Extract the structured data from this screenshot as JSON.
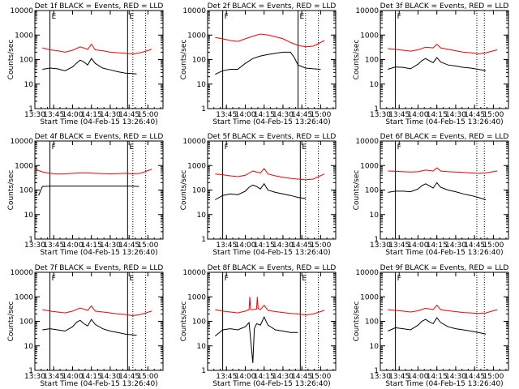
{
  "figure": {
    "xlabel": "Start Time (04-Feb-15 13:26:40)",
    "ylabel": "Counts/sec",
    "colors": {
      "events": "#000000",
      "lld": "#ff0000",
      "axes": "#000000"
    }
  },
  "chart_data": [
    {
      "type": "line",
      "title": "Det 1f BLACK = Events, RED = LLD",
      "xticks": [
        "13:30",
        "13:45",
        "14:00",
        "14:15",
        "14:30",
        "14:45",
        "15:00"
      ],
      "yticks": [
        "1",
        "10",
        "100",
        "1000",
        "10000"
      ],
      "ylim": [
        1,
        10000
      ],
      "log_y": true,
      "markers": [
        {
          "label": "E",
          "time": 13.7,
          "style": "solid"
        },
        {
          "label": "E",
          "time": 14.73,
          "style": "solid"
        }
      ],
      "dotted_times": [
        14.8,
        14.97
      ],
      "series": [
        {
          "name": "LLD",
          "color": "#ff0000",
          "x": [
            13.6,
            13.7,
            13.8,
            13.9,
            14.0,
            14.1,
            14.2,
            14.25,
            14.3,
            14.4,
            14.5,
            14.6,
            14.7,
            14.8,
            14.9,
            15.05
          ],
          "y": [
            300,
            250,
            230,
            200,
            240,
            330,
            260,
            420,
            250,
            230,
            200,
            190,
            180,
            170,
            190,
            260
          ]
        },
        {
          "name": "Events",
          "color": "#000000",
          "x": [
            13.6,
            13.7,
            13.8,
            13.9,
            14.0,
            14.05,
            14.1,
            14.15,
            14.2,
            14.25,
            14.3,
            14.4,
            14.5,
            14.6,
            14.7,
            14.8,
            14.85
          ],
          "y": [
            40,
            45,
            42,
            35,
            50,
            70,
            95,
            80,
            60,
            110,
            70,
            45,
            38,
            32,
            28,
            27,
            26
          ]
        }
      ]
    },
    {
      "type": "line",
      "title": "Det 2f BLACK = Events, RED = LLD",
      "xticks": [
        "13:45",
        "14:00",
        "14:15",
        "14:30",
        "14:45",
        "15:00"
      ],
      "yticks": [
        "1",
        "10",
        "100",
        "1000",
        "10000"
      ],
      "ylim": [
        1,
        10000
      ],
      "log_y": true,
      "markers": [
        {
          "label": "F",
          "time": 13.7,
          "style": "solid"
        },
        {
          "label": "E",
          "time": 14.7,
          "style": "solid"
        }
      ],
      "dotted_times": [
        14.8,
        14.97
      ],
      "series": [
        {
          "name": "LLD",
          "color": "#ff0000",
          "x": [
            13.6,
            13.7,
            13.8,
            13.9,
            14.0,
            14.1,
            14.2,
            14.3,
            14.4,
            14.5,
            14.6,
            14.7,
            14.8,
            14.9,
            15.05
          ],
          "y": [
            800,
            700,
            600,
            550,
            700,
            900,
            1100,
            1000,
            850,
            700,
            500,
            380,
            330,
            350,
            600
          ]
        },
        {
          "name": "Events",
          "color": "#000000",
          "x": [
            13.6,
            13.7,
            13.8,
            13.9,
            14.0,
            14.1,
            14.2,
            14.3,
            14.4,
            14.5,
            14.6,
            14.65,
            14.7,
            14.8,
            14.9,
            15.0
          ],
          "y": [
            25,
            35,
            40,
            40,
            70,
            110,
            140,
            160,
            180,
            200,
            200,
            120,
            60,
            45,
            42,
            40
          ]
        }
      ]
    },
    {
      "type": "line",
      "title": "Det 3f BLACK = Events, RED = LLD",
      "xticks": [
        "13:30",
        "13:45",
        "14:00",
        "14:15",
        "14:30",
        "14:45",
        "15:00"
      ],
      "yticks": [
        "1",
        "10",
        "100",
        "1000",
        "10000"
      ],
      "ylim": [
        1,
        10000
      ],
      "log_y": true,
      "markers": [
        {
          "label": "F",
          "time": 13.7,
          "style": "solid"
        }
      ],
      "dotted_times": [
        14.78,
        14.88
      ],
      "series": [
        {
          "name": "LLD",
          "color": "#ff0000",
          "x": [
            13.6,
            13.7,
            13.8,
            13.9,
            14.0,
            14.1,
            14.2,
            14.25,
            14.3,
            14.4,
            14.5,
            14.6,
            14.7,
            14.8,
            14.9,
            15.05
          ],
          "y": [
            280,
            260,
            240,
            220,
            250,
            320,
            300,
            420,
            300,
            260,
            230,
            200,
            190,
            170,
            190,
            250
          ]
        },
        {
          "name": "Events",
          "color": "#000000",
          "x": [
            13.6,
            13.7,
            13.8,
            13.9,
            14.0,
            14.05,
            14.1,
            14.15,
            14.2,
            14.25,
            14.3,
            14.4,
            14.5,
            14.6,
            14.7,
            14.8,
            14.9
          ],
          "y": [
            40,
            50,
            48,
            42,
            65,
            90,
            110,
            90,
            75,
            120,
            80,
            60,
            55,
            48,
            45,
            40,
            35
          ]
        }
      ]
    },
    {
      "type": "line",
      "title": "Det 4f BLACK = Events, RED = LLD",
      "xticks": [
        "13:30",
        "13:45",
        "14:00",
        "14:15",
        "14:30",
        "14:45",
        "15:00"
      ],
      "yticks": [
        "1",
        "10",
        "100",
        "1000",
        "10000"
      ],
      "ylim": [
        1,
        10000
      ],
      "log_y": true,
      "markers": [
        {
          "label": "F",
          "time": 13.7,
          "style": "solid"
        },
        {
          "label": "E",
          "time": 14.73,
          "style": "solid"
        }
      ],
      "dotted_times": [
        14.8,
        14.97
      ],
      "series": [
        {
          "name": "LLD",
          "color": "#ff0000",
          "x": [
            13.5,
            13.6,
            13.7,
            13.8,
            13.9,
            14.0,
            14.1,
            14.2,
            14.3,
            14.4,
            14.5,
            14.6,
            14.7,
            14.8,
            14.9,
            15.05
          ],
          "y": [
            700,
            550,
            480,
            450,
            460,
            480,
            500,
            500,
            480,
            470,
            460,
            470,
            480,
            460,
            480,
            700
          ]
        },
        {
          "name": "Events",
          "color": "#000000",
          "x": [
            13.55,
            13.6,
            13.7,
            13.8,
            13.9,
            14.0,
            14.1,
            14.2,
            14.3,
            14.4,
            14.5,
            14.6,
            14.7,
            14.8,
            14.88
          ],
          "y": [
            60,
            140,
            145,
            145,
            145,
            145,
            145,
            145,
            145,
            145,
            145,
            145,
            145,
            145,
            140
          ]
        }
      ]
    },
    {
      "type": "line",
      "title": "Det 5f BLACK = Events, RED = LLD",
      "xticks": [
        "13:45",
        "14:00",
        "14:15",
        "14:30",
        "14:45",
        "15:00"
      ],
      "yticks": [
        "1",
        "10",
        "100",
        "1000",
        "10000"
      ],
      "ylim": [
        1,
        10000
      ],
      "log_y": true,
      "markers": [
        {
          "label": "F",
          "time": 13.7,
          "style": "solid"
        },
        {
          "label": "E",
          "time": 14.73,
          "style": "solid"
        }
      ],
      "dotted_times": [
        14.8,
        14.97
      ],
      "series": [
        {
          "name": "LLD",
          "color": "#ff0000",
          "x": [
            13.6,
            13.7,
            13.8,
            13.9,
            14.0,
            14.1,
            14.2,
            14.25,
            14.3,
            14.4,
            14.5,
            14.6,
            14.7,
            14.8,
            14.9,
            15.05
          ],
          "y": [
            450,
            420,
            380,
            350,
            400,
            600,
            500,
            750,
            450,
            380,
            330,
            300,
            280,
            260,
            280,
            450
          ]
        },
        {
          "name": "Events",
          "color": "#000000",
          "x": [
            13.6,
            13.7,
            13.8,
            13.9,
            14.0,
            14.05,
            14.1,
            14.15,
            14.2,
            14.25,
            14.3,
            14.4,
            14.5,
            14.6,
            14.7,
            14.8
          ],
          "y": [
            40,
            60,
            70,
            65,
            90,
            130,
            160,
            140,
            110,
            180,
            100,
            80,
            70,
            60,
            50,
            45
          ]
        }
      ]
    },
    {
      "type": "line",
      "title": "Det 6f BLACK = Events, RED = LLD",
      "xticks": [
        "13:30",
        "13:45",
        "14:00",
        "14:15",
        "14:30",
        "14:45",
        "15:00"
      ],
      "yticks": [
        "1",
        "10",
        "100",
        "1000",
        "10000"
      ],
      "ylim": [
        1,
        10000
      ],
      "log_y": true,
      "markers": [
        {
          "label": "F",
          "time": 13.7,
          "style": "solid"
        }
      ],
      "dotted_times": [
        14.78,
        14.88
      ],
      "series": [
        {
          "name": "LLD",
          "color": "#ff0000",
          "x": [
            13.6,
            13.7,
            13.8,
            13.9,
            14.0,
            14.1,
            14.2,
            14.25,
            14.3,
            14.4,
            14.5,
            14.6,
            14.7,
            14.8,
            14.9,
            15.05
          ],
          "y": [
            600,
            580,
            560,
            540,
            560,
            650,
            600,
            800,
            600,
            560,
            540,
            520,
            500,
            480,
            500,
            600
          ]
        },
        {
          "name": "Events",
          "color": "#000000",
          "x": [
            13.6,
            13.7,
            13.8,
            13.9,
            14.0,
            14.05,
            14.1,
            14.15,
            14.2,
            14.25,
            14.3,
            14.4,
            14.5,
            14.6,
            14.7,
            14.8,
            14.9
          ],
          "y": [
            80,
            90,
            90,
            85,
            110,
            150,
            180,
            150,
            120,
            200,
            130,
            100,
            85,
            70,
            60,
            50,
            40
          ]
        }
      ]
    },
    {
      "type": "line",
      "title": "Det 7f BLACK = Events, RED = LLD",
      "xticks": [
        "13:30",
        "13:45",
        "14:00",
        "14:15",
        "14:30",
        "14:45",
        "15:00"
      ],
      "yticks": [
        "1",
        "10",
        "100",
        "1000",
        "10000"
      ],
      "ylim": [
        1,
        10000
      ],
      "log_y": true,
      "markers": [
        {
          "label": "F",
          "time": 13.7,
          "style": "solid"
        },
        {
          "label": "E",
          "time": 14.73,
          "style": "solid"
        }
      ],
      "dotted_times": [
        14.8,
        14.97
      ],
      "series": [
        {
          "name": "LLD",
          "color": "#ff0000",
          "x": [
            13.6,
            13.7,
            13.8,
            13.9,
            14.0,
            14.1,
            14.2,
            14.25,
            14.3,
            14.4,
            14.5,
            14.6,
            14.7,
            14.8,
            14.9,
            15.05
          ],
          "y": [
            300,
            260,
            240,
            220,
            260,
            350,
            280,
            420,
            260,
            240,
            220,
            200,
            190,
            170,
            190,
            260
          ]
        },
        {
          "name": "Events",
          "color": "#000000",
          "x": [
            13.6,
            13.7,
            13.8,
            13.9,
            14.0,
            14.05,
            14.1,
            14.15,
            14.2,
            14.25,
            14.3,
            14.4,
            14.5,
            14.6,
            14.7,
            14.8,
            14.85
          ],
          "y": [
            45,
            50,
            45,
            40,
            60,
            90,
            110,
            80,
            65,
            120,
            75,
            50,
            40,
            35,
            30,
            28,
            27
          ]
        }
      ]
    },
    {
      "type": "line",
      "title": "Det 8f BLACK = Events, RED = LLD",
      "xticks": [
        "13:45",
        "14:00",
        "14:15",
        "14:30",
        "14:45",
        "15:00"
      ],
      "yticks": [
        "1",
        "10",
        "100",
        "1000",
        "10000"
      ],
      "ylim": [
        1,
        10000
      ],
      "log_y": true,
      "markers": [
        {
          "label": "F",
          "time": 13.7,
          "style": "solid"
        },
        {
          "label": "E",
          "time": 14.73,
          "style": "solid"
        }
      ],
      "dotted_times": [
        14.8,
        14.97
      ],
      "series": [
        {
          "name": "LLD",
          "color": "#ff0000",
          "x": [
            13.6,
            13.7,
            13.8,
            13.9,
            14.0,
            14.05,
            14.06,
            14.07,
            14.1,
            14.15,
            14.16,
            14.17,
            14.2,
            14.25,
            14.3,
            14.4,
            14.5,
            14.6,
            14.7,
            14.8,
            14.9,
            15.05
          ],
          "y": [
            300,
            260,
            240,
            220,
            260,
            300,
            1000,
            300,
            300,
            320,
            1000,
            330,
            300,
            450,
            280,
            250,
            230,
            210,
            200,
            180,
            200,
            280
          ]
        },
        {
          "name": "Events",
          "color": "#000000",
          "x": [
            13.6,
            13.7,
            13.8,
            13.9,
            14.0,
            14.05,
            14.1,
            14.12,
            14.15,
            14.2,
            14.25,
            14.3,
            14.4,
            14.5,
            14.6,
            14.7
          ],
          "y": [
            25,
            45,
            50,
            45,
            60,
            90,
            2,
            50,
            80,
            70,
            150,
            70,
            45,
            40,
            35,
            35
          ]
        }
      ]
    },
    {
      "type": "line",
      "title": "Det 9f BLACK = Events, RED = LLD",
      "xticks": [
        "13:30",
        "13:45",
        "14:00",
        "14:15",
        "14:30",
        "14:45",
        "15:00"
      ],
      "yticks": [
        "1",
        "10",
        "100",
        "1000",
        "10000"
      ],
      "ylim": [
        1,
        10000
      ],
      "log_y": true,
      "markers": [
        {
          "label": "F",
          "time": 13.7,
          "style": "solid"
        }
      ],
      "dotted_times": [
        14.78,
        14.88
      ],
      "series": [
        {
          "name": "LLD",
          "color": "#ff0000",
          "x": [
            13.6,
            13.7,
            13.8,
            13.9,
            14.0,
            14.1,
            14.2,
            14.25,
            14.3,
            14.4,
            14.5,
            14.6,
            14.7,
            14.8,
            14.9,
            15.05
          ],
          "y": [
            300,
            280,
            260,
            240,
            270,
            340,
            300,
            450,
            300,
            270,
            250,
            230,
            220,
            210,
            220,
            300
          ]
        },
        {
          "name": "Events",
          "color": "#000000",
          "x": [
            13.6,
            13.7,
            13.8,
            13.9,
            14.0,
            14.05,
            14.1,
            14.15,
            14.2,
            14.25,
            14.3,
            14.4,
            14.5,
            14.6,
            14.7,
            14.8,
            14.9
          ],
          "y": [
            40,
            55,
            50,
            45,
            70,
            100,
            120,
            95,
            80,
            140,
            90,
            60,
            50,
            45,
            40,
            35,
            30
          ]
        }
      ]
    }
  ]
}
